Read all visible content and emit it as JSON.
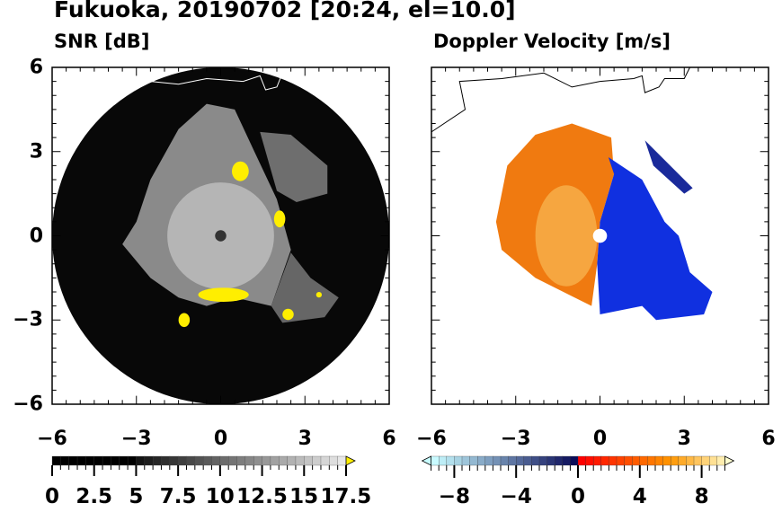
{
  "chart_data": [
    {
      "type": "heatmap",
      "title": "Fukuoka, 20190702 [20:24, el=10.0]",
      "subtitle": "SNR [dB]",
      "xlim": [
        -6,
        6
      ],
      "ylim": [
        -6,
        6
      ],
      "xticks": [
        "−6",
        "−3",
        "0",
        "3",
        "6"
      ],
      "yticks": [
        "6",
        "3",
        "0",
        "−3",
        "−6"
      ],
      "colorbar": {
        "min": 0,
        "max": 17.5,
        "extend": "max",
        "ticks": [
          "0",
          "2.5",
          "5",
          "7.5",
          "10",
          "12.5",
          "15",
          "17.5"
        ],
        "colors": {
          "low": "#000000",
          "high": "#f0f0f0",
          "over": "#ffee00"
        }
      }
    },
    {
      "type": "heatmap",
      "subtitle": "Doppler Velocity [m/s]",
      "xlim": [
        -6,
        6
      ],
      "ylim": [
        -6,
        6
      ],
      "xticks": [
        "−6",
        "−3",
        "0",
        "3",
        "6"
      ],
      "colorbar": {
        "min": -10,
        "max": 10,
        "extend": "both",
        "ticks": [
          "−8",
          "−4",
          "0",
          "4",
          "8"
        ]
      }
    }
  ]
}
